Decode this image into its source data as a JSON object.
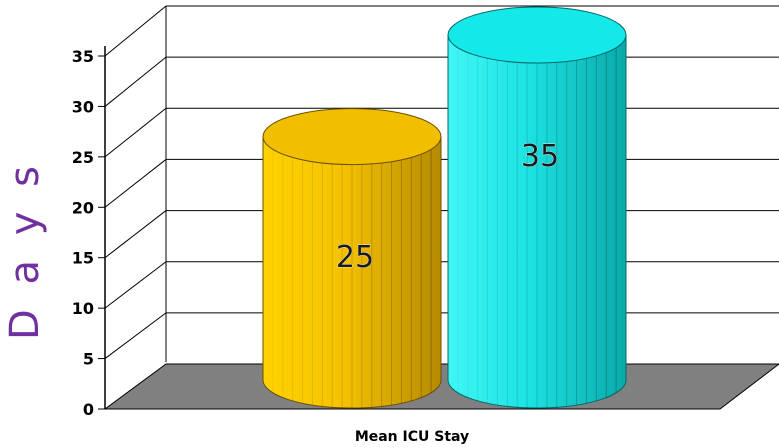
{
  "chart_data": {
    "type": "bar",
    "style": "3d-cylinder",
    "categories": [
      "Mean ICU Stay"
    ],
    "series": [
      {
        "values": [
          25
        ],
        "color": "#F2BE00",
        "data_label": "25"
      },
      {
        "values": [
          35
        ],
        "color": "#14E8E8",
        "data_label": "35"
      }
    ],
    "xlabel": "Mean ICU Stay",
    "ylabel": "D a y s",
    "ylim": [
      0,
      35
    ],
    "yticks": [
      "0",
      "5",
      "10",
      "15",
      "20",
      "25",
      "30",
      "35"
    ],
    "grid": true,
    "legend": "none",
    "colors": {
      "ylabel": "#7030A0",
      "floor": "#808080",
      "gridline": "#000000"
    }
  }
}
